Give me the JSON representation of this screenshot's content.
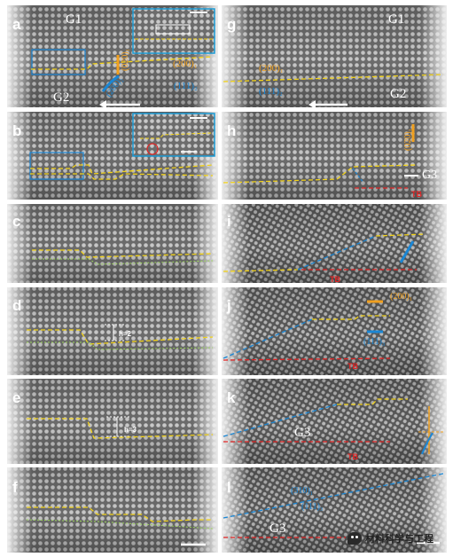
{
  "panels": [
    {
      "id": "a",
      "label": "a",
      "grain_top": "G1",
      "grain_bottom": "G2",
      "annot_orange": "(200)₁",
      "annot_orange_vert": "(020)₁",
      "annot_blue": "(111)₂",
      "annot_blue_diag": "(200)₂"
    },
    {
      "id": "b",
      "label": "b"
    },
    {
      "id": "c",
      "label": "c"
    },
    {
      "id": "d",
      "label": "d",
      "step": "h=2"
    },
    {
      "id": "e",
      "label": "e",
      "step": "h=3"
    },
    {
      "id": "f",
      "label": "f"
    },
    {
      "id": "g",
      "label": "g",
      "grain_top": "G1",
      "grain_bottom": "G2",
      "annot_orange": "(200)₁",
      "annot_blue": "(111)₂"
    },
    {
      "id": "h",
      "label": "h",
      "grain_right": "G3",
      "tb": "TB",
      "annot_orange_vert": "(020)₁"
    },
    {
      "id": "i",
      "label": "i",
      "tb": "TB"
    },
    {
      "id": "j",
      "label": "j",
      "tb": "TB",
      "annot_orange": "(200)₁",
      "annot_blue": "(111)₃"
    },
    {
      "id": "k",
      "label": "k",
      "grain": "G3",
      "tb": "TB"
    },
    {
      "id": "l",
      "label": "l",
      "grain": "G3",
      "annot_blue_1": "(310)₁",
      "annot_blue_2": "(111)₃"
    }
  ],
  "watermark": {
    "text": "材料科学与工程"
  },
  "colors": {
    "yellow": "#f2d21a",
    "orange": "#f0a020",
    "blue": "#1a86d4",
    "red": "#e02424",
    "dash_red": "#d42020"
  }
}
